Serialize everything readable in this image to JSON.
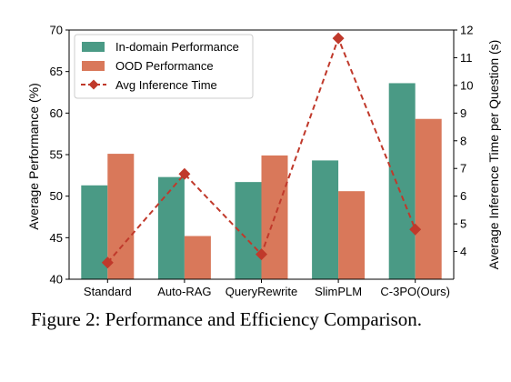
{
  "caption": "Figure 2: Performance and Efficiency Comparison.",
  "chart_data": {
    "type": "bar",
    "categories": [
      "Standard",
      "Auto-RAG",
      "QueryRewrite",
      "SlimPLM",
      "C-3PO(Ours)"
    ],
    "series": [
      {
        "name": "In-domain Performance",
        "type": "bar",
        "axis": "left",
        "color": "#4a9a85",
        "values": [
          51.3,
          52.3,
          51.7,
          54.3,
          63.6
        ]
      },
      {
        "name": "OOD Performance",
        "type": "bar",
        "axis": "left",
        "color": "#d9785a",
        "values": [
          55.1,
          45.2,
          54.9,
          50.6,
          59.3
        ]
      },
      {
        "name": "Avg Inference Time",
        "type": "line",
        "axis": "right",
        "color": "#c0392b",
        "style": "dashed",
        "marker": "diamond",
        "values": [
          3.6,
          6.8,
          3.9,
          11.7,
          4.8
        ]
      }
    ],
    "ylabel": "Average Performance (%)",
    "ylabel_right": "Average Inference Time per Question (s)",
    "ylim": [
      40,
      70
    ],
    "yticks": [
      40,
      45,
      50,
      55,
      60,
      65,
      70
    ],
    "ylim_right": [
      3,
      12
    ],
    "yticks_right": [
      4,
      5,
      6,
      7,
      8,
      9,
      10,
      11,
      12
    ],
    "legend_position": "top-left",
    "grid": false
  }
}
